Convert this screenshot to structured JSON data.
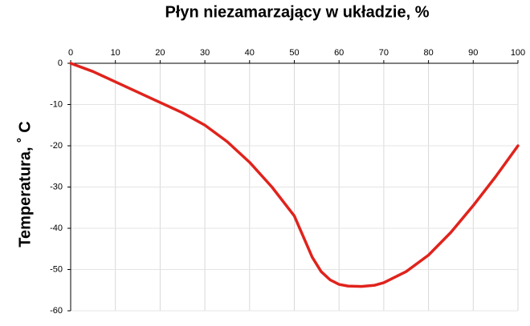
{
  "chart_data": {
    "type": "line",
    "title": "Płyn niezamarzający w układzie, %",
    "y_label": "Temperatura, ˚ C",
    "x": [
      0,
      5,
      10,
      15,
      20,
      25,
      30,
      35,
      40,
      45,
      50,
      52,
      54,
      56,
      58,
      60,
      62,
      65,
      68,
      70,
      75,
      80,
      85,
      90,
      95,
      100
    ],
    "series": [
      {
        "name": "Temperatura",
        "color": "#e0231c",
        "values": [
          0,
          -2,
          -4.5,
          -7,
          -9.5,
          -12,
          -15,
          -19,
          -24,
          -30,
          -37,
          -42,
          -47,
          -50.5,
          -52.5,
          -53.6,
          -54,
          -54.1,
          -53.8,
          -53.2,
          -50.5,
          -46.5,
          -41,
          -34.5,
          -27.5,
          -20
        ]
      }
    ],
    "xlim": [
      0,
      100
    ],
    "xticks": [
      0,
      10,
      20,
      30,
      40,
      50,
      60,
      70,
      80,
      90,
      100
    ],
    "ylim": [
      -60,
      0
    ],
    "yticks": [
      0,
      -10,
      -20,
      -30,
      -40,
      -50,
      -60
    ],
    "grid": true
  }
}
